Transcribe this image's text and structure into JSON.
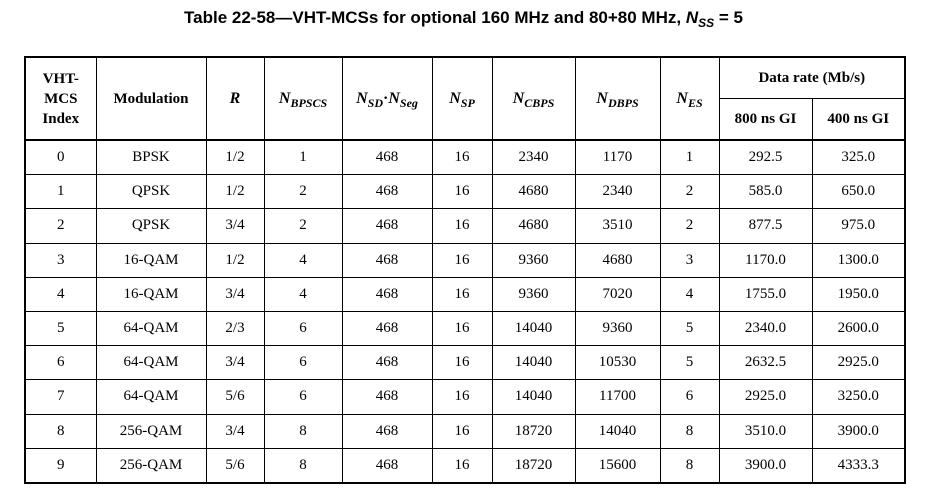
{
  "caption": {
    "prefix": "Table 22-58—VHT-MCSs for optional 160 MHz and 80+80 MHz, ",
    "nss_main": "N",
    "nss_sub": "SS",
    "suffix": " = 5"
  },
  "headers": {
    "index_l1": "VHT-",
    "index_l2": "MCS",
    "index_l3": "Index",
    "modulation": "Modulation",
    "r": "R",
    "nbpscs": {
      "main": "N",
      "sub": "BPSCS"
    },
    "nsd": {
      "main": "N",
      "sub": "SD"
    },
    "dot": "·",
    "nseg": {
      "main": "N",
      "sub": "Seg"
    },
    "nsp": {
      "main": "N",
      "sub": "SP"
    },
    "ncbps": {
      "main": "N",
      "sub": "CBPS"
    },
    "ndbps": {
      "main": "N",
      "sub": "DBPS"
    },
    "nes": {
      "main": "N",
      "sub": "ES"
    },
    "data_rate": "Data rate (Mb/s)",
    "gi800": "800 ns GI",
    "gi400": "400 ns GI"
  },
  "rows": [
    [
      "0",
      "BPSK",
      "1/2",
      "1",
      "468",
      "16",
      "2340",
      "1170",
      "1",
      "292.5",
      "325.0"
    ],
    [
      "1",
      "QPSK",
      "1/2",
      "2",
      "468",
      "16",
      "4680",
      "2340",
      "2",
      "585.0",
      "650.0"
    ],
    [
      "2",
      "QPSK",
      "3/4",
      "2",
      "468",
      "16",
      "4680",
      "3510",
      "2",
      "877.5",
      "975.0"
    ],
    [
      "3",
      "16-QAM",
      "1/2",
      "4",
      "468",
      "16",
      "9360",
      "4680",
      "3",
      "1170.0",
      "1300.0"
    ],
    [
      "4",
      "16-QAM",
      "3/4",
      "4",
      "468",
      "16",
      "9360",
      "7020",
      "4",
      "1755.0",
      "1950.0"
    ],
    [
      "5",
      "64-QAM",
      "2/3",
      "6",
      "468",
      "16",
      "14040",
      "9360",
      "5",
      "2340.0",
      "2600.0"
    ],
    [
      "6",
      "64-QAM",
      "3/4",
      "6",
      "468",
      "16",
      "14040",
      "10530",
      "5",
      "2632.5",
      "2925.0"
    ],
    [
      "7",
      "64-QAM",
      "5/6",
      "6",
      "468",
      "16",
      "14040",
      "11700",
      "6",
      "2925.0",
      "3250.0"
    ],
    [
      "8",
      "256-QAM",
      "3/4",
      "8",
      "468",
      "16",
      "18720",
      "14040",
      "8",
      "3510.0",
      "3900.0"
    ],
    [
      "9",
      "256-QAM",
      "5/6",
      "8",
      "468",
      "16",
      "18720",
      "15600",
      "8",
      "3900.0",
      "4333.3"
    ]
  ]
}
